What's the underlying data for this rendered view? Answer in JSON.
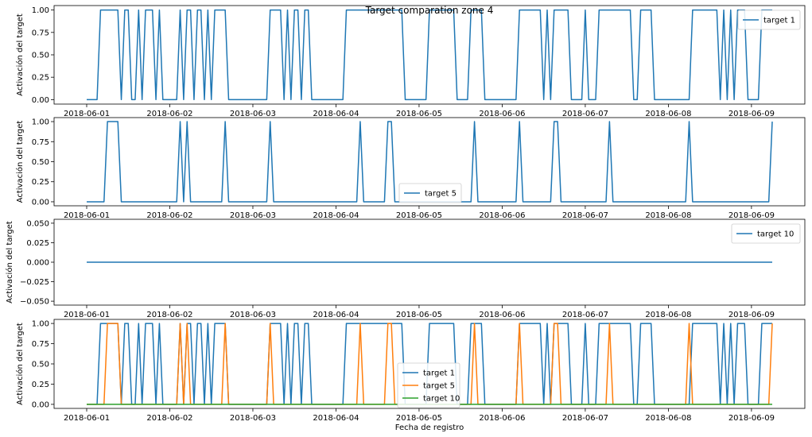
{
  "chart_data": [
    {
      "type": "line",
      "title": "Target comparation zone 4",
      "xlabel": "",
      "ylabel": "Activación del target",
      "xlim": [
        "2018-06-01T00:00",
        "2018-06-09T06:00"
      ],
      "ylim": [
        -0.05,
        1.05
      ],
      "x_ticks": [
        "2018-06-01",
        "2018-06-02",
        "2018-06-03",
        "2018-06-04",
        "2018-06-05",
        "2018-06-06",
        "2018-06-07",
        "2018-06-08",
        "2018-06-09"
      ],
      "y_ticks": [
        "0.00",
        "0.25",
        "0.50",
        "0.75",
        "1.00"
      ],
      "legend": "upper right",
      "series": [
        {
          "name": "target 1",
          "color": "#1f77b4",
          "on_intervals": [
            [
              "2018-06-01T04:00",
              "2018-06-01T09:00"
            ],
            [
              "2018-06-01T11:00",
              "2018-06-01T12:00"
            ],
            [
              "2018-06-01T15:00",
              "2018-06-01T15:00"
            ],
            [
              "2018-06-01T17:00",
              "2018-06-01T19:00"
            ],
            [
              "2018-06-01T21:00",
              "2018-06-01T21:00"
            ],
            [
              "2018-06-02T03:00",
              "2018-06-02T03:00"
            ],
            [
              "2018-06-02T05:00",
              "2018-06-02T06:00"
            ],
            [
              "2018-06-02T08:00",
              "2018-06-02T09:00"
            ],
            [
              "2018-06-02T11:00",
              "2018-06-02T11:00"
            ],
            [
              "2018-06-02T13:00",
              "2018-06-02T16:00"
            ],
            [
              "2018-06-03T05:00",
              "2018-06-03T08:00"
            ],
            [
              "2018-06-03T10:00",
              "2018-06-03T10:00"
            ],
            [
              "2018-06-03T12:00",
              "2018-06-03T13:00"
            ],
            [
              "2018-06-03T15:00",
              "2018-06-03T16:00"
            ],
            [
              "2018-06-04T03:00",
              "2018-06-04T19:00"
            ],
            [
              "2018-06-05T03:00",
              "2018-06-05T10:00"
            ],
            [
              "2018-06-05T15:00",
              "2018-06-05T18:00"
            ],
            [
              "2018-06-06T05:00",
              "2018-06-06T11:00"
            ],
            [
              "2018-06-06T13:00",
              "2018-06-06T13:00"
            ],
            [
              "2018-06-06T15:00",
              "2018-06-06T19:00"
            ],
            [
              "2018-06-07T00:00",
              "2018-06-07T00:00"
            ],
            [
              "2018-06-07T04:00",
              "2018-06-07T13:00"
            ],
            [
              "2018-06-07T16:00",
              "2018-06-07T19:00"
            ],
            [
              "2018-06-08T07:00",
              "2018-06-08T14:00"
            ],
            [
              "2018-06-08T16:00",
              "2018-06-08T16:00"
            ],
            [
              "2018-06-08T18:00",
              "2018-06-08T18:00"
            ],
            [
              "2018-06-08T20:00",
              "2018-06-08T22:00"
            ],
            [
              "2018-06-09T03:00",
              "2018-06-09T06:00"
            ]
          ]
        }
      ]
    },
    {
      "type": "line",
      "title": "",
      "xlabel": "",
      "ylabel": "Activación del target",
      "xlim": [
        "2018-06-01T00:00",
        "2018-06-09T06:00"
      ],
      "ylim": [
        -0.05,
        1.05
      ],
      "x_ticks": [
        "2018-06-01",
        "2018-06-02",
        "2018-06-03",
        "2018-06-04",
        "2018-06-05",
        "2018-06-06",
        "2018-06-07",
        "2018-06-08",
        "2018-06-09"
      ],
      "y_ticks": [
        "0.00",
        "0.25",
        "0.50",
        "0.75",
        "1.00"
      ],
      "legend": "lower center",
      "series": [
        {
          "name": "target 5",
          "color": "#1f77b4",
          "on_intervals": [
            [
              "2018-06-01T06:00",
              "2018-06-01T09:00"
            ],
            [
              "2018-06-02T03:00",
              "2018-06-02T03:00"
            ],
            [
              "2018-06-02T05:00",
              "2018-06-02T05:00"
            ],
            [
              "2018-06-02T16:00",
              "2018-06-02T16:00"
            ],
            [
              "2018-06-03T05:00",
              "2018-06-03T05:00"
            ],
            [
              "2018-06-04T07:00",
              "2018-06-04T07:00"
            ],
            [
              "2018-06-04T15:00",
              "2018-06-04T16:00"
            ],
            [
              "2018-06-05T16:00",
              "2018-06-05T16:00"
            ],
            [
              "2018-06-06T05:00",
              "2018-06-06T05:00"
            ],
            [
              "2018-06-06T15:00",
              "2018-06-06T16:00"
            ],
            [
              "2018-06-07T07:00",
              "2018-06-07T07:00"
            ],
            [
              "2018-06-08T06:00",
              "2018-06-08T06:00"
            ],
            [
              "2018-06-09T06:00",
              "2018-06-09T06:00"
            ]
          ]
        }
      ]
    },
    {
      "type": "line",
      "title": "",
      "xlabel": "",
      "ylabel": "Activación del target",
      "xlim": [
        "2018-06-01T00:00",
        "2018-06-09T06:00"
      ],
      "ylim": [
        -0.055,
        0.055
      ],
      "x_ticks": [
        "2018-06-01",
        "2018-06-02",
        "2018-06-03",
        "2018-06-04",
        "2018-06-05",
        "2018-06-06",
        "2018-06-07",
        "2018-06-08",
        "2018-06-09"
      ],
      "y_ticks": [
        "−0.050",
        "−0.025",
        "0.000",
        "0.025",
        "0.050"
      ],
      "legend": "upper right",
      "series": [
        {
          "name": "target 10",
          "color": "#1f77b4",
          "on_intervals": []
        }
      ]
    },
    {
      "type": "line",
      "title": "",
      "xlabel": "Fecha de registro",
      "ylabel": "Activación del target",
      "xlim": [
        "2018-06-01T00:00",
        "2018-06-09T06:00"
      ],
      "ylim": [
        -0.05,
        1.05
      ],
      "x_ticks": [
        "2018-06-01",
        "2018-06-02",
        "2018-06-03",
        "2018-06-04",
        "2018-06-05",
        "2018-06-06",
        "2018-06-07",
        "2018-06-08",
        "2018-06-09"
      ],
      "y_ticks": [
        "0.00",
        "0.25",
        "0.50",
        "0.75",
        "1.00"
      ],
      "legend": "lower center",
      "series": [
        {
          "name": "target 1",
          "color": "#1f77b4",
          "on_intervals": [
            [
              "2018-06-01T04:00",
              "2018-06-01T09:00"
            ],
            [
              "2018-06-01T11:00",
              "2018-06-01T12:00"
            ],
            [
              "2018-06-01T15:00",
              "2018-06-01T15:00"
            ],
            [
              "2018-06-01T17:00",
              "2018-06-01T19:00"
            ],
            [
              "2018-06-01T21:00",
              "2018-06-01T21:00"
            ],
            [
              "2018-06-02T03:00",
              "2018-06-02T03:00"
            ],
            [
              "2018-06-02T05:00",
              "2018-06-02T06:00"
            ],
            [
              "2018-06-02T08:00",
              "2018-06-02T09:00"
            ],
            [
              "2018-06-02T11:00",
              "2018-06-02T11:00"
            ],
            [
              "2018-06-02T13:00",
              "2018-06-02T16:00"
            ],
            [
              "2018-06-03T05:00",
              "2018-06-03T08:00"
            ],
            [
              "2018-06-03T10:00",
              "2018-06-03T10:00"
            ],
            [
              "2018-06-03T12:00",
              "2018-06-03T13:00"
            ],
            [
              "2018-06-03T15:00",
              "2018-06-03T16:00"
            ],
            [
              "2018-06-04T03:00",
              "2018-06-04T19:00"
            ],
            [
              "2018-06-05T03:00",
              "2018-06-05T10:00"
            ],
            [
              "2018-06-05T15:00",
              "2018-06-05T18:00"
            ],
            [
              "2018-06-06T05:00",
              "2018-06-06T11:00"
            ],
            [
              "2018-06-06T13:00",
              "2018-06-06T13:00"
            ],
            [
              "2018-06-06T15:00",
              "2018-06-06T19:00"
            ],
            [
              "2018-06-07T00:00",
              "2018-06-07T00:00"
            ],
            [
              "2018-06-07T04:00",
              "2018-06-07T13:00"
            ],
            [
              "2018-06-07T16:00",
              "2018-06-07T19:00"
            ],
            [
              "2018-06-08T07:00",
              "2018-06-08T14:00"
            ],
            [
              "2018-06-08T16:00",
              "2018-06-08T16:00"
            ],
            [
              "2018-06-08T18:00",
              "2018-06-08T18:00"
            ],
            [
              "2018-06-08T20:00",
              "2018-06-08T22:00"
            ],
            [
              "2018-06-09T03:00",
              "2018-06-09T06:00"
            ]
          ]
        },
        {
          "name": "target 5",
          "color": "#ff7f0e",
          "on_intervals": [
            [
              "2018-06-01T06:00",
              "2018-06-01T09:00"
            ],
            [
              "2018-06-02T03:00",
              "2018-06-02T03:00"
            ],
            [
              "2018-06-02T05:00",
              "2018-06-02T05:00"
            ],
            [
              "2018-06-02T16:00",
              "2018-06-02T16:00"
            ],
            [
              "2018-06-03T05:00",
              "2018-06-03T05:00"
            ],
            [
              "2018-06-04T07:00",
              "2018-06-04T07:00"
            ],
            [
              "2018-06-04T15:00",
              "2018-06-04T16:00"
            ],
            [
              "2018-06-05T16:00",
              "2018-06-05T16:00"
            ],
            [
              "2018-06-06T05:00",
              "2018-06-06T05:00"
            ],
            [
              "2018-06-06T15:00",
              "2018-06-06T16:00"
            ],
            [
              "2018-06-07T07:00",
              "2018-06-07T07:00"
            ],
            [
              "2018-06-08T06:00",
              "2018-06-08T06:00"
            ],
            [
              "2018-06-09T06:00",
              "2018-06-09T06:00"
            ]
          ]
        },
        {
          "name": "target 10",
          "color": "#2ca02c",
          "on_intervals": []
        }
      ]
    }
  ]
}
